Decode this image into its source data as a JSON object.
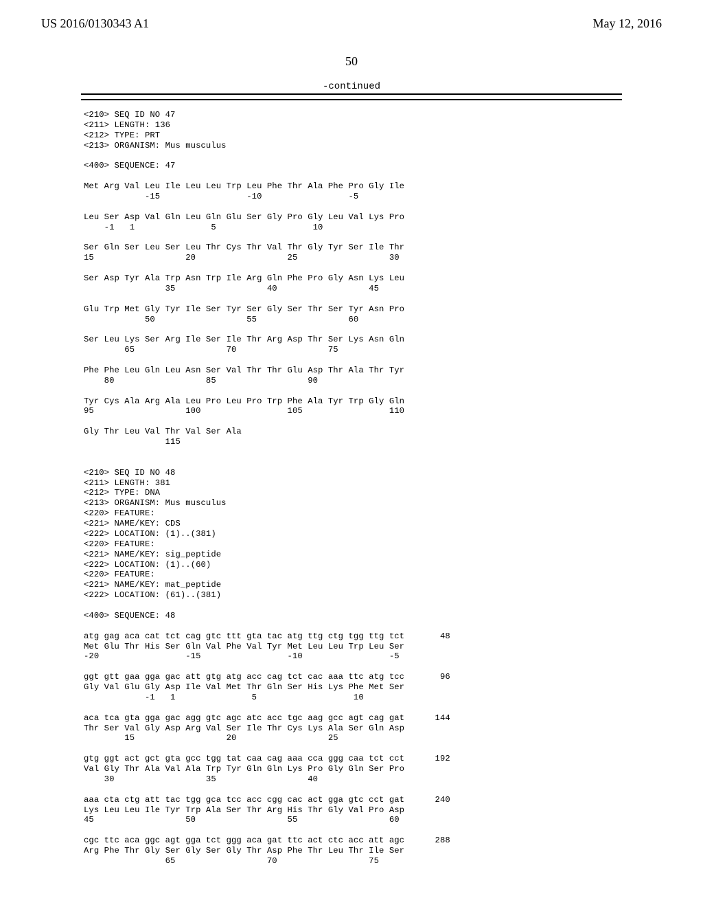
{
  "header": {
    "left": "US 2016/0130343 A1",
    "right": "May 12, 2016"
  },
  "page_number": "50",
  "continued_label": "-continued",
  "sequence_text": "<210> SEQ ID NO 47\n<211> LENGTH: 136\n<212> TYPE: PRT\n<213> ORGANISM: Mus musculus\n\n<400> SEQUENCE: 47\n\nMet Arg Val Leu Ile Leu Leu Trp Leu Phe Thr Ala Phe Pro Gly Ile\n            -15                 -10                 -5\n\nLeu Ser Asp Val Gln Leu Gln Glu Ser Gly Pro Gly Leu Val Lys Pro\n    -1   1               5                   10\n\nSer Gln Ser Leu Ser Leu Thr Cys Thr Val Thr Gly Tyr Ser Ile Thr\n15                  20                  25                  30\n\nSer Asp Tyr Ala Trp Asn Trp Ile Arg Gln Phe Pro Gly Asn Lys Leu\n                35                  40                  45\n\nGlu Trp Met Gly Tyr Ile Ser Tyr Ser Gly Ser Thr Ser Tyr Asn Pro\n            50                  55                  60\n\nSer Leu Lys Ser Arg Ile Ser Ile Thr Arg Asp Thr Ser Lys Asn Gln\n        65                  70                  75\n\nPhe Phe Leu Gln Leu Asn Ser Val Thr Thr Glu Asp Thr Ala Thr Tyr\n    80                  85                  90\n\nTyr Cys Ala Arg Ala Leu Pro Leu Pro Trp Phe Ala Tyr Trp Gly Gln\n95                  100                 105                 110\n\nGly Thr Leu Val Thr Val Ser Ala\n                115\n\n\n<210> SEQ ID NO 48\n<211> LENGTH: 381\n<212> TYPE: DNA\n<213> ORGANISM: Mus musculus\n<220> FEATURE:\n<221> NAME/KEY: CDS\n<222> LOCATION: (1)..(381)\n<220> FEATURE:\n<221> NAME/KEY: sig_peptide\n<222> LOCATION: (1)..(60)\n<220> FEATURE:\n<221> NAME/KEY: mat_peptide\n<222> LOCATION: (61)..(381)\n\n<400> SEQUENCE: 48\n\natg gag aca cat tct cag gtc ttt gta tac atg ttg ctg tgg ttg tct       48\nMet Glu Thr His Ser Gln Val Phe Val Tyr Met Leu Leu Trp Leu Ser\n-20                 -15                 -10                 -5\n\nggt gtt gaa gga gac att gtg atg acc cag tct cac aaa ttc atg tcc       96\nGly Val Glu Gly Asp Ile Val Met Thr Gln Ser His Lys Phe Met Ser\n            -1   1               5                   10\n\naca tca gta gga gac agg gtc agc atc acc tgc aag gcc agt cag gat      144\nThr Ser Val Gly Asp Arg Val Ser Ile Thr Cys Lys Ala Ser Gln Asp\n        15                  20                  25\n\ngtg ggt act gct gta gcc tgg tat caa cag aaa cca ggg caa tct cct      192\nVal Gly Thr Ala Val Ala Trp Tyr Gln Gln Lys Pro Gly Gln Ser Pro\n    30                  35                  40\n\naaa cta ctg att tac tgg gca tcc acc cgg cac act gga gtc cct gat      240\nLys Leu Leu Ile Tyr Trp Ala Ser Thr Arg His Thr Gly Val Pro Asp\n45                  50                  55                  60\n\ncgc ttc aca ggc agt gga tct ggg aca gat ttc act ctc acc att agc      288\nArg Phe Thr Gly Ser Gly Ser Gly Thr Asp Phe Thr Leu Thr Ile Ser\n                65                  70                  75"
}
